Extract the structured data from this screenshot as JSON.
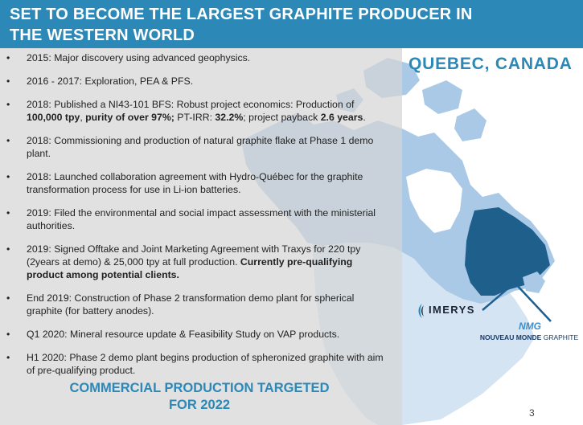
{
  "slide": {
    "title": "SET TO BECOME THE LARGEST GRAPHITE PRODUCER IN THE WESTERN WORLD",
    "region_label": "QUEBEC, CANADA",
    "bullets": [
      [
        {
          "text": "2015: Major discovery using advanced geophysics."
        }
      ],
      [
        {
          "text": "2016 - 2017: Exploration, PEA & PFS."
        }
      ],
      [
        {
          "text": "2018: Published a NI43-101 BFS: Robust project economics:  Production of "
        },
        {
          "text": "100,000 tpy",
          "bold": true
        },
        {
          "text": ", "
        },
        {
          "text": "purity of over 97%;",
          "bold": true
        },
        {
          "text": " PT-IRR: "
        },
        {
          "text": "32.2%",
          "bold": true
        },
        {
          "text": "; project payback "
        },
        {
          "text": "2.6 years",
          "bold": true
        },
        {
          "text": "."
        }
      ],
      [
        {
          "text": "2018: Commissioning and production of natural graphite flake at Phase 1 demo plant."
        }
      ],
      [
        {
          "text": "2018: Launched collaboration agreement with Hydro-Québec for the graphite transformation process for use in Li-ion batteries."
        }
      ],
      [
        {
          "text": "2019: Filed the environmental and social impact assessment with the ministerial authorities."
        }
      ],
      [
        {
          "text": "2019: Signed Offtake and Joint Marketing Agreement with  Traxys for 220 tpy (2years at demo) & 25,000 tpy at full production. "
        },
        {
          "text": "Currently pre-qualifying product among potential clients.",
          "bold": true
        }
      ],
      [
        {
          "text": "End 2019: Construction of Phase 2 transformation demo plant for spherical graphite (for battery anodes)."
        }
      ],
      [
        {
          "text": "Q1 2020: Mineral resource update & Feasibility Study on VAP products."
        }
      ],
      [
        {
          "text": "H1 2020: Phase 2 demo plant begins production of spheronized graphite with aim of pre-qualifying product."
        }
      ]
    ],
    "cta_line1": "COMMERCIAL PRODUCTION TARGETED",
    "cta_line2": "FOR 2022",
    "page_number": "3"
  },
  "logos": {
    "imerys": "IMERYS",
    "nmg_bold": "NOUVEAU MONDE",
    "nmg_light": "GRAPHITE",
    "nmg_mark": "NMG"
  },
  "colors": {
    "header_bg": "#2b88b7",
    "accent": "#2b88b7",
    "quebec_fill": "#1f5f8c",
    "canada_fill": "#a9c9e6",
    "usa_fill": "#d4e4f2",
    "arrow": "#1e5f8f"
  }
}
